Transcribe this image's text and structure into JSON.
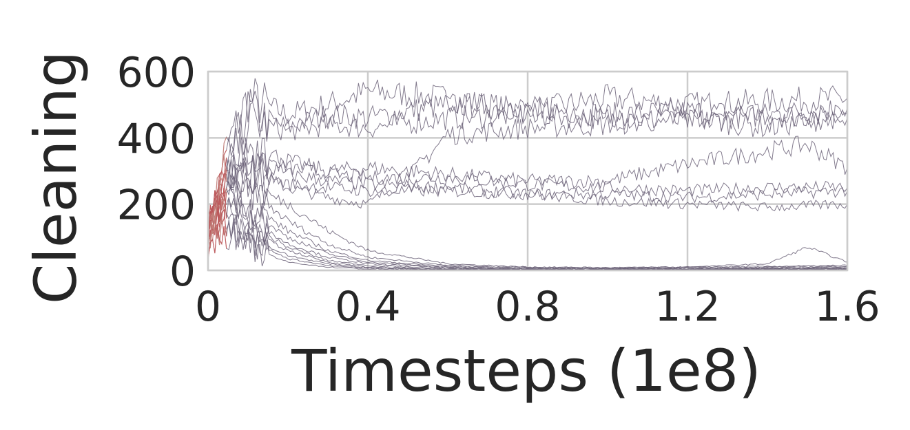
{
  "chart_data": {
    "type": "line",
    "title": "",
    "xlabel": "Timesteps (1e8)",
    "ylabel": "Cleaning",
    "xlim": [
      0,
      1.6
    ],
    "ylim": [
      0,
      600
    ],
    "x_ticks": [
      0,
      0.4,
      0.8,
      1.2,
      1.6
    ],
    "x_tick_labels": [
      "0",
      "0.4",
      "0.8",
      "1.2",
      "1.6"
    ],
    "y_ticks": [
      0,
      200,
      400,
      600
    ],
    "y_tick_labels": [
      "0",
      "200",
      "400",
      "600"
    ],
    "grid": true,
    "legend": "none",
    "line_color": "#6b6178",
    "early_color": "#d9534f",
    "series": [
      {
        "x": [
          0,
          0.04,
          0.1,
          0.2,
          0.3,
          0.4,
          0.6,
          0.8,
          1.0,
          1.2,
          1.4,
          1.6
        ],
        "values": [
          120,
          350,
          520,
          470,
          500,
          540,
          520,
          480,
          520,
          500,
          510,
          520
        ]
      },
      {
        "x": [
          0,
          0.04,
          0.1,
          0.2,
          0.3,
          0.4,
          0.6,
          0.8,
          1.0,
          1.2,
          1.4,
          1.6
        ],
        "values": [
          110,
          300,
          480,
          430,
          470,
          460,
          500,
          490,
          470,
          480,
          470,
          490
        ]
      },
      {
        "x": [
          0,
          0.04,
          0.1,
          0.2,
          0.3,
          0.4,
          0.6,
          0.8,
          1.0,
          1.2,
          1.4,
          1.6
        ],
        "values": [
          100,
          280,
          450,
          420,
          440,
          430,
          460,
          470,
          460,
          450,
          470,
          460
        ]
      },
      {
        "x": [
          0,
          0.04,
          0.1,
          0.2,
          0.3,
          0.4,
          0.5,
          0.6,
          0.8,
          1.0,
          1.2,
          1.4,
          1.6
        ],
        "values": [
          90,
          200,
          300,
          250,
          220,
          200,
          280,
          410,
          430,
          440,
          460,
          430,
          470
        ]
      },
      {
        "x": [
          0,
          0.04,
          0.1,
          0.2,
          0.3,
          0.4,
          0.6,
          0.8,
          1.0,
          1.2,
          1.4,
          1.5,
          1.6
        ],
        "values": [
          120,
          250,
          380,
          330,
          300,
          310,
          290,
          270,
          270,
          320,
          360,
          380,
          310
        ]
      },
      {
        "x": [
          0,
          0.04,
          0.1,
          0.2,
          0.3,
          0.4,
          0.6,
          0.8,
          1.0,
          1.2,
          1.4,
          1.6
        ],
        "values": [
          130,
          280,
          350,
          310,
          290,
          280,
          280,
          260,
          250,
          240,
          250,
          250
        ]
      },
      {
        "x": [
          0,
          0.04,
          0.1,
          0.2,
          0.3,
          0.4,
          0.6,
          0.8,
          1.0,
          1.2,
          1.4,
          1.6
        ],
        "values": [
          100,
          240,
          330,
          290,
          270,
          260,
          250,
          230,
          230,
          220,
          230,
          240
        ]
      },
      {
        "x": [
          0,
          0.04,
          0.1,
          0.2,
          0.3,
          0.4,
          0.6,
          0.8,
          1.0,
          1.2,
          1.4,
          1.6
        ],
        "values": [
          110,
          220,
          300,
          260,
          250,
          240,
          240,
          230,
          210,
          200,
          190,
          200
        ]
      },
      {
        "x": [
          0,
          0.04,
          0.1,
          0.2,
          0.3,
          0.4,
          0.6,
          0.8,
          1.0,
          1.2,
          1.4,
          1.6
        ],
        "values": [
          150,
          320,
          260,
          200,
          120,
          60,
          20,
          10,
          8,
          10,
          12,
          15
        ]
      },
      {
        "x": [
          0,
          0.04,
          0.1,
          0.2,
          0.3,
          0.4,
          0.6,
          0.8,
          1.0,
          1.2,
          1.4,
          1.5,
          1.6
        ],
        "values": [
          130,
          300,
          240,
          150,
          80,
          40,
          15,
          10,
          8,
          10,
          20,
          70,
          25
        ]
      },
      {
        "x": [
          0,
          0.04,
          0.1,
          0.2,
          0.3,
          0.4,
          0.6,
          0.8,
          1.0,
          1.2,
          1.4,
          1.6
        ],
        "values": [
          110,
          260,
          200,
          120,
          60,
          30,
          12,
          8,
          6,
          8,
          10,
          12
        ]
      },
      {
        "x": [
          0,
          0.04,
          0.1,
          0.2,
          0.3,
          0.4,
          0.6,
          0.8,
          1.0,
          1.2,
          1.4,
          1.6
        ],
        "values": [
          100,
          240,
          180,
          100,
          50,
          25,
          10,
          6,
          5,
          6,
          8,
          10
        ]
      },
      {
        "x": [
          0,
          0.04,
          0.1,
          0.2,
          0.3,
          0.4,
          0.6,
          0.8,
          1.0,
          1.2,
          1.4,
          1.6
        ],
        "values": [
          90,
          220,
          160,
          80,
          40,
          20,
          8,
          5,
          4,
          5,
          6,
          8
        ]
      },
      {
        "x": [
          0,
          0.04,
          0.1,
          0.2,
          0.3,
          0.4,
          0.6,
          0.8,
          1.0,
          1.2,
          1.4,
          1.6
        ],
        "values": [
          120,
          200,
          140,
          70,
          30,
          15,
          6,
          4,
          3,
          4,
          5,
          6
        ]
      },
      {
        "x": [
          0,
          0.04,
          0.1,
          0.2,
          0.3,
          0.4,
          0.6,
          0.8,
          1.0,
          1.2,
          1.4,
          1.6
        ],
        "values": [
          80,
          180,
          120,
          60,
          25,
          10,
          5,
          3,
          2,
          3,
          4,
          5
        ]
      },
      {
        "x": [
          0,
          0.04,
          0.1,
          0.2,
          0.3,
          0.4,
          0.6,
          0.8,
          1.0,
          1.2,
          1.4,
          1.6
        ],
        "values": [
          100,
          160,
          100,
          45,
          20,
          8,
          4,
          2,
          2,
          2,
          3,
          4
        ]
      },
      {
        "x": [
          0,
          0.04,
          0.1,
          0.2,
          0.3,
          0.4,
          0.6,
          0.8,
          1.0,
          1.2,
          1.4,
          1.6
        ],
        "values": [
          90,
          140,
          90,
          35,
          15,
          6,
          3,
          2,
          1,
          2,
          2,
          3
        ]
      },
      {
        "x": [
          0,
          0.04,
          0.1,
          0.2,
          0.3,
          0.4,
          0.6,
          0.8,
          1.0,
          1.2,
          1.4,
          1.6
        ],
        "values": [
          70,
          120,
          70,
          25,
          10,
          4,
          2,
          1,
          1,
          1,
          2,
          2
        ]
      }
    ]
  }
}
